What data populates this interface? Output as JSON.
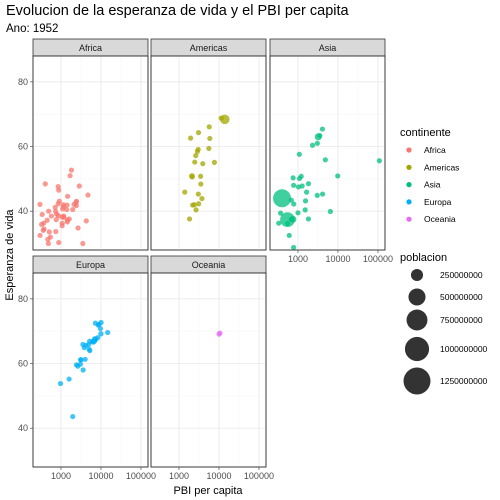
{
  "title": "Evolucion de la esperanza de vida y el PBI per capita",
  "subtitle": "Ano: 1952",
  "chart_data": {
    "type": "scatter",
    "xlabel": "PBI per capita",
    "ylabel": "Esperanza de vida",
    "x_scale": "log10",
    "xlim": [
      200,
      150000
    ],
    "ylim": [
      28,
      88
    ],
    "x_ticks": [
      1000,
      10000,
      100000
    ],
    "x_tick_labels": [
      "1000",
      "10000",
      "100000"
    ],
    "y_ticks": [
      40,
      60,
      80
    ],
    "y_tick_labels": [
      "40",
      "60",
      "80"
    ],
    "grid": true,
    "legend_placement": "right",
    "color_legend": {
      "title": "continente",
      "entries": [
        {
          "label": "Africa",
          "color": "#F8766D"
        },
        {
          "label": "Americas",
          "color": "#A3A500"
        },
        {
          "label": "Asia",
          "color": "#00BF7D"
        },
        {
          "label": "Europa",
          "color": "#00B0F6"
        },
        {
          "label": "Oceania",
          "color": "#E76BF3"
        }
      ]
    },
    "size_legend": {
      "title": "poblacion",
      "entries": [
        {
          "label": "250000000",
          "value": 250000000
        },
        {
          "label": "500000000",
          "value": 500000000
        },
        {
          "label": "750000000",
          "value": 750000000
        },
        {
          "label": "1000000000",
          "value": 1000000000
        },
        {
          "label": "1250000000",
          "value": 1250000000
        }
      ]
    },
    "facets": [
      {
        "name": "Africa",
        "color": "#F8766D",
        "points": [
          [
            2449,
            43.1,
            9300000.0
          ],
          [
            3521,
            30.0,
            4200000.0
          ],
          [
            1063,
            38.2,
            1700000.0
          ],
          [
            851,
            47.6,
            400000.0
          ],
          [
            543,
            32.0,
            4500000.0
          ],
          [
            339,
            39.0,
            2400000.0
          ],
          [
            1173,
            38.5,
            5000000.0
          ],
          [
            1071,
            35.5,
            1300000.0
          ],
          [
            1179,
            38.1,
            2700000.0
          ],
          [
            1103,
            40.7,
            150000.0
          ],
          [
            781,
            39.1,
            14100000.0
          ],
          [
            2126,
            42.1,
            850000.0
          ],
          [
            1389,
            40.5,
            2980000.0
          ],
          [
            2670,
            34.8,
            60000.0
          ],
          [
            1419,
            41.9,
            22200000.0
          ],
          [
            376,
            34.5,
            220000.0
          ],
          [
            328,
            35.9,
            1440000.0
          ],
          [
            362,
            34.1,
            20900000.0
          ],
          [
            4293,
            37.0,
            420000.0
          ],
          [
            485,
            30.0,
            280000.0
          ],
          [
            911,
            43.1,
            5600000.0
          ],
          [
            510,
            33.6,
            2660000.0
          ],
          [
            300,
            32.5,
            580000.0
          ],
          [
            854,
            42.3,
            6460000.0
          ],
          [
            299,
            42.1,
            750000.0
          ],
          [
            576,
            38.5,
            860000.0
          ],
          [
            2388,
            42.7,
            1020000.0
          ],
          [
            1443,
            36.7,
            4760000.0
          ],
          [
            370,
            36.3,
            2920000.0
          ],
          [
            452,
            37.2,
            3840000.0
          ],
          [
            744,
            33.7,
            1020000.0
          ],
          [
            1967,
            40.5,
            520000.0
          ],
          [
            1688,
            50.99,
            9300000.0
          ],
          [
            469,
            31.3,
            6450000.0
          ],
          [
            2424,
            41.7,
            490000.0
          ],
          [
            762,
            37.4,
            3380000.0
          ],
          [
            1077,
            36.3,
            33100000.0
          ],
          [
            493,
            40.0,
            2530000.0
          ],
          [
            879,
            46.5,
            60000.0
          ],
          [
            1450,
            37.3,
            2760000.0
          ],
          [
            880,
            30.3,
            2140000.0
          ],
          [
            4725,
            45.0,
            14300000.0
          ],
          [
            1615,
            37.6,
            8500000.0
          ],
          [
            1148,
            41.4,
            290000.0
          ],
          [
            717,
            41.2,
            8320000.0
          ],
          [
            859,
            38.6,
            1220000.0
          ],
          [
            1468,
            44.6,
            3650000.0
          ],
          [
            735,
            39.98,
            5820000.0
          ],
          [
            1147,
            42.0,
            2670000.0
          ],
          [
            406,
            48.45,
            3080000.0
          ],
          [
            2880,
            47.8,
            280000.0
          ],
          [
            1831,
            52.7,
            260000.0
          ]
        ]
      },
      {
        "name": "Americas",
        "color": "#A3A500",
        "points": [
          [
            5911,
            62.5,
            17900000.0
          ],
          [
            2677,
            40.4,
            2900000.0
          ],
          [
            2109,
            50.9,
            56600000.0
          ],
          [
            11367,
            68.8,
            14800000.0
          ],
          [
            3940,
            54.7,
            6400000.0
          ],
          [
            2144,
            50.6,
            12400000.0
          ],
          [
            2627,
            57.2,
            930000.0
          ],
          [
            5587,
            59.4,
            6000000.0
          ],
          [
            1398,
            45.9,
            2500000.0
          ],
          [
            3522,
            48.4,
            3500000.0
          ],
          [
            3048,
            45.3,
            2000000.0
          ],
          [
            2428,
            42.0,
            3100000.0
          ],
          [
            1840,
            37.6,
            3200000.0
          ],
          [
            2194,
            41.9,
            1500000.0
          ],
          [
            2899,
            58.5,
            1400000.0
          ],
          [
            3478,
            50.8,
            30100000.0
          ],
          [
            3112,
            42.3,
            1100000.0
          ],
          [
            2480,
            55.2,
            940000.0
          ],
          [
            1953,
            62.6,
            1560000.0
          ],
          [
            3759,
            43.9,
            8000000.0
          ],
          [
            3082,
            64.3,
            2200000.0
          ],
          [
            3023,
            59.1,
            660000.0
          ],
          [
            13990,
            68.4,
            157600000.0
          ],
          [
            5717,
            66.1,
            2250000.0
          ],
          [
            7690,
            55.1,
            5400000.0
          ]
        ]
      },
      {
        "name": "Asia",
        "color": "#00BF7D",
        "points": [
          [
            779,
            28.8,
            8400000.0
          ],
          [
            9867,
            50.9,
            120000.0
          ],
          [
            684,
            37.5,
            46900000.0
          ],
          [
            368,
            39.4,
            4700000.0
          ],
          [
            400,
            44.0,
            556300000.0
          ],
          [
            3054,
            61.0,
            2100000.0
          ],
          [
            547,
            37.4,
            372000000.0
          ],
          [
            750,
            37.5,
            82100000.0
          ],
          [
            3035,
            44.9,
            17300000.0
          ],
          [
            4130,
            45.3,
            5400000.0
          ],
          [
            4087,
            65.4,
            1600000.0
          ],
          [
            3217,
            63.0,
            86500000.0
          ],
          [
            1547,
            43.2,
            610000.0
          ],
          [
            1089,
            50.1,
            8900000.0
          ],
          [
            1031,
            47.5,
            20900000.0
          ],
          [
            108382,
            55.6,
            160000.0
          ],
          [
            4835,
            55.9,
            1400000.0
          ],
          [
            1831,
            48.5,
            6700000.0
          ],
          [
            786,
            42.2,
            800000.0
          ],
          [
            331,
            36.3,
            20100000.0
          ],
          [
            546,
            36.2,
            9200000.0
          ],
          [
            1828,
            37.6,
            510000.0
          ],
          [
            684,
            43.4,
            41300000.0
          ],
          [
            1273,
            47.8,
            22400000.0
          ],
          [
            6460,
            39.9,
            4000000.0
          ],
          [
            2315,
            60.4,
            1100000.0
          ],
          [
            1083,
            57.6,
            7980000.0
          ],
          [
            1643,
            45.9,
            3660000.0
          ],
          [
            1207,
            50.8,
            8500000.0
          ],
          [
            757,
            50.3,
            21300000.0
          ],
          [
            1516,
            40.4,
            1000000.0
          ],
          [
            605,
            32.5,
            4960000.0
          ],
          [
            781,
            48.0,
            26200000.0
          ],
          [
            3530,
            63.4,
            5300000.0
          ],
          [
            1001,
            39.5,
            16000000.0
          ]
        ]
      },
      {
        "name": "Europa",
        "color": "#00B0F6",
        "points": [
          [
            1601,
            55.2,
            1280000.0
          ],
          [
            6137,
            66.8,
            6900000.0
          ],
          [
            8343,
            68.0,
            8700000.0
          ],
          [
            974,
            53.8,
            2800000.0
          ],
          [
            2444,
            59.6,
            7300000.0
          ],
          [
            3119,
            61.2,
            3900000.0
          ],
          [
            6876,
            66.9,
            9100000.0
          ],
          [
            9692,
            70.8,
            4300000.0
          ],
          [
            6424,
            66.6,
            4100000.0
          ],
          [
            7030,
            67.4,
            42500000.0
          ],
          [
            7144,
            67.5,
            69100000.0
          ],
          [
            3531,
            65.9,
            7700000.0
          ],
          [
            5264,
            64.0,
            9500000.0
          ],
          [
            7268,
            72.5,
            150000.0
          ],
          [
            5210,
            66.9,
            2950000.0
          ],
          [
            4931,
            65.9,
            47700000.0
          ],
          [
            2648,
            59.2,
            410000.0
          ],
          [
            8942,
            72.1,
            10400000.0
          ],
          [
            10095,
            72.7,
            3300000.0
          ],
          [
            4029,
            61.3,
            25700000.0
          ],
          [
            3068,
            59.8,
            8500000.0
          ],
          [
            3145,
            61.1,
            16600000.0
          ],
          [
            3582,
            58.0,
            6900000.0
          ],
          [
            5075,
            64.4,
            3600000.0
          ],
          [
            4215,
            65.6,
            1500000.0
          ],
          [
            3834,
            64.9,
            28600000.0
          ],
          [
            8528,
            71.9,
            7100000.0
          ],
          [
            14734,
            69.6,
            4800000.0
          ],
          [
            1969,
            43.6,
            22200000.0
          ],
          [
            9979,
            69.2,
            50400000.0
          ]
        ]
      },
      {
        "name": "Oceania",
        "color": "#E76BF3",
        "points": [
          [
            10040,
            69.1,
            8700000.0
          ],
          [
            10557,
            69.4,
            1990000.0
          ]
        ]
      }
    ]
  }
}
